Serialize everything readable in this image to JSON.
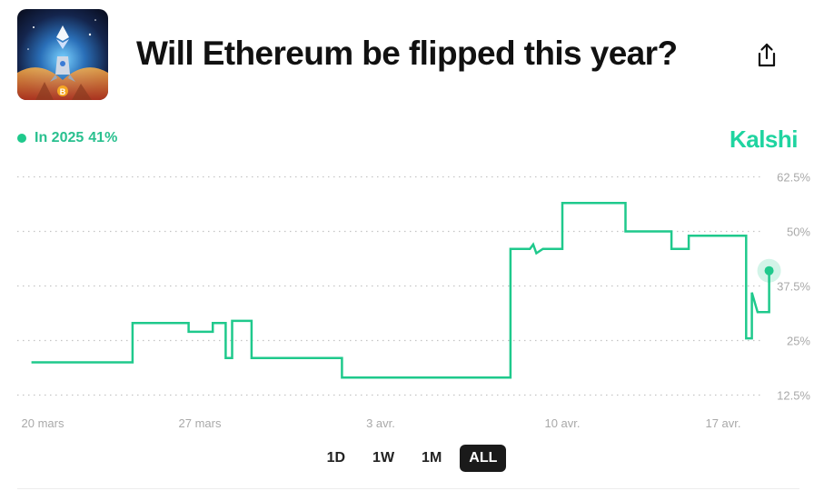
{
  "header": {
    "title": "Will Ethereum be flipped this year?",
    "thumbnail_icon": "ethereum-rocket-artwork",
    "share_icon": "share-icon"
  },
  "legend": {
    "series_name": "In 2025",
    "value_label": "41%",
    "color": "#1fc98c"
  },
  "brand": {
    "name": "Kalshi",
    "color": "#1fd4a0"
  },
  "range_buttons": [
    {
      "label": "1D",
      "active": false
    },
    {
      "label": "1W",
      "active": false
    },
    {
      "label": "1M",
      "active": false
    },
    {
      "label": "ALL",
      "active": true
    }
  ],
  "chart_data": {
    "type": "line",
    "title": "",
    "xlabel": "",
    "ylabel": "",
    "x_ticks": [
      "20 mars",
      "27 mars",
      "3 avr.",
      "10 avr.",
      "17 avr."
    ],
    "y_ticks": [
      "62.5%",
      "50%",
      "37.5%",
      "25%",
      "12.5%"
    ],
    "y_tick_values": [
      62.5,
      50,
      37.5,
      25,
      12.5
    ],
    "ylim": [
      10,
      65
    ],
    "xlim": [
      "2025-03-19",
      "2025-04-19"
    ],
    "grid": true,
    "legend_position": "top-left",
    "series": [
      {
        "name": "In 2025",
        "color": "#1fc98c",
        "x": [
          "2025-03-19 12:00",
          "2025-03-24 00:00",
          "2025-03-24 00:00",
          "2025-03-26 12:00",
          "2025-03-26 12:00",
          "2025-03-27 12:00",
          "2025-03-27 12:00",
          "2025-03-28 00:00",
          "2025-03-28 00:00",
          "2025-03-28 06:00",
          "2025-03-28 06:00",
          "2025-03-29 00:00",
          "2025-03-29 00:00",
          "2025-03-29 06:00",
          "2025-03-29 12:00",
          "2025-03-29 12:00",
          "2025-04-01 12:00",
          "2025-04-01 12:00",
          "2025-04-08 00:00",
          "2025-04-08 00:00",
          "2025-04-08 18:00",
          "2025-04-08 21:00",
          "2025-04-09 00:00",
          "2025-04-09 06:00",
          "2025-04-09 06:00",
          "2025-04-10 00:00",
          "2025-04-10 00:00",
          "2025-04-12 18:00",
          "2025-04-12 18:00",
          "2025-04-14 18:00",
          "2025-04-14 18:00",
          "2025-04-15 12:00",
          "2025-04-15 12:00",
          "2025-04-18 00:00",
          "2025-04-18 00:00",
          "2025-04-18 06:00",
          "2025-04-18 06:00",
          "2025-04-18 12:00",
          "2025-04-18 12:00",
          "2025-04-19 00:00",
          "2025-04-19 00:00"
        ],
        "values": [
          20,
          20,
          29,
          29,
          27,
          27,
          29,
          29,
          21,
          21,
          29.5,
          29.5,
          21,
          21,
          21,
          21,
          21,
          16.5,
          16.5,
          46,
          46,
          47,
          45,
          46,
          46,
          46,
          56.5,
          56.5,
          50,
          50,
          46,
          46,
          49,
          49,
          25.5,
          25.5,
          36,
          31.5,
          31.5,
          31.5,
          41
        ]
      }
    ]
  }
}
